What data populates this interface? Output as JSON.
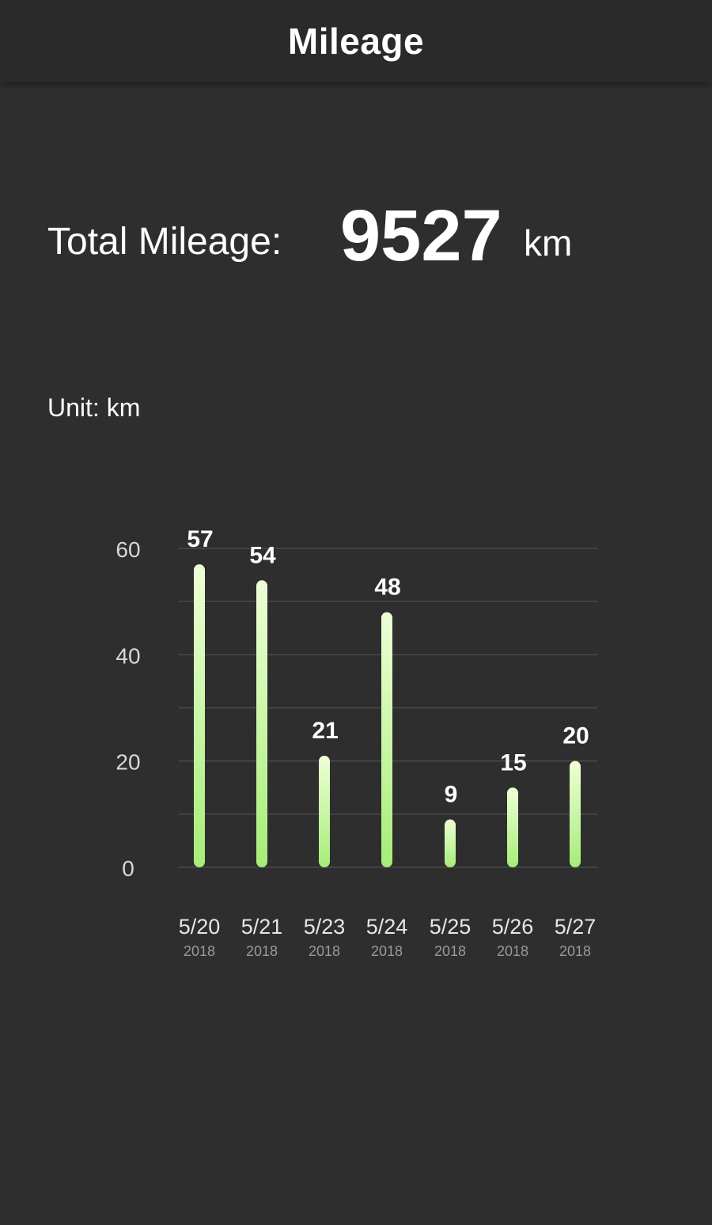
{
  "header": {
    "title": "Mileage"
  },
  "summary": {
    "label": "Total Mileage:",
    "value": "9527",
    "unit": "km"
  },
  "chart_unit_label": "Unit: km",
  "colors": {
    "background": "#2e2e2e",
    "header": "#2a2a2a",
    "bar_top": "#eeffd6",
    "bar_bottom": "#a6ed78",
    "grid": "#4a4a4a",
    "text": "#ffffff"
  },
  "chart_data": {
    "type": "bar",
    "categories": [
      "5/20",
      "5/21",
      "5/23",
      "5/24",
      "5/25",
      "5/26",
      "5/27"
    ],
    "sublabels": [
      "2018",
      "2018",
      "2018",
      "2018",
      "2018",
      "2018",
      "2018"
    ],
    "values": [
      57,
      54,
      21,
      48,
      9,
      15,
      20
    ],
    "y_ticks": [
      0,
      20,
      40,
      60
    ],
    "ylim": [
      0,
      60
    ],
    "grid": true,
    "data_labels": true
  }
}
